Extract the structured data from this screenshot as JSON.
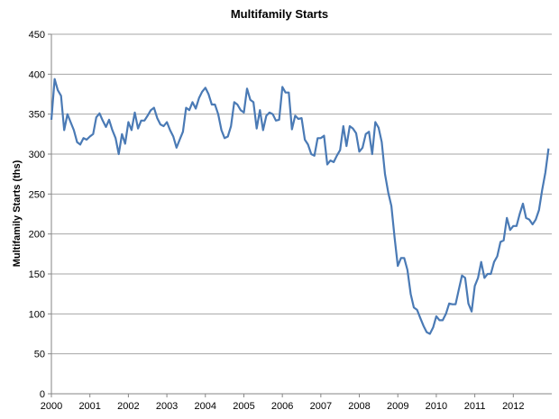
{
  "chart_data": {
    "type": "line",
    "title": "Multifamily Starts",
    "xlabel": "",
    "ylabel": "Multifamily Starts (ths)",
    "ylim": [
      0,
      450
    ],
    "yticks": [
      0,
      50,
      100,
      150,
      200,
      250,
      300,
      350,
      400,
      450
    ],
    "xticks": [
      "2000",
      "2001",
      "2002",
      "2003",
      "2004",
      "2005",
      "2006",
      "2007",
      "2008",
      "2009",
      "2010",
      "2011",
      "2012"
    ],
    "x_start": 2000,
    "frequency": "monthly",
    "grid": true,
    "line_color": "#4a7ab5",
    "series": [
      {
        "name": "Multifamily Starts",
        "values": [
          343,
          394,
          380,
          373,
          330,
          350,
          340,
          330,
          315,
          312,
          320,
          318,
          322,
          325,
          346,
          351,
          342,
          334,
          343,
          330,
          320,
          300,
          325,
          313,
          340,
          330,
          352,
          332,
          342,
          342,
          348,
          355,
          358,
          345,
          337,
          335,
          340,
          330,
          322,
          308,
          318,
          328,
          358,
          355,
          365,
          357,
          370,
          378,
          383,
          375,
          362,
          362,
          350,
          330,
          320,
          322,
          335,
          365,
          362,
          355,
          352,
          382,
          368,
          365,
          332,
          355,
          330,
          348,
          352,
          350,
          342,
          343,
          384,
          377,
          377,
          331,
          348,
          344,
          345,
          318,
          312,
          300,
          298,
          320,
          320,
          323,
          287,
          292,
          290,
          298,
          305,
          335,
          310,
          335,
          332,
          326,
          303,
          308,
          325,
          328,
          300,
          340,
          333,
          315,
          275,
          252,
          235,
          195,
          160,
          170,
          170,
          155,
          125,
          108,
          105,
          95,
          85,
          77,
          75,
          83,
          97,
          92,
          92,
          100,
          113,
          112,
          112,
          130,
          148,
          145,
          113,
          103,
          135,
          145,
          165,
          145,
          150,
          150,
          165,
          172,
          190,
          192,
          220,
          205,
          210,
          210,
          225,
          238,
          220,
          218,
          212,
          218,
          230,
          255,
          277,
          307
        ]
      }
    ]
  }
}
